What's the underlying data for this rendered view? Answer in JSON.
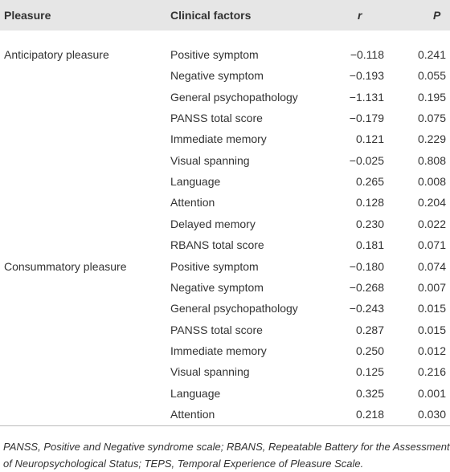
{
  "table": {
    "header": [
      "Pleasure",
      "Clinical factors",
      "r",
      "P"
    ],
    "groups": [
      {
        "pleasure": "Anticipatory pleasure",
        "rows": [
          [
            "Positive symptom",
            "−0.118",
            "0.241"
          ],
          [
            "Negative symptom",
            "−0.193",
            "0.055"
          ],
          [
            "General psychopathology",
            "−1.131",
            "0.195"
          ],
          [
            "PANSS total score",
            "−0.179",
            "0.075"
          ],
          [
            "Immediate memory",
            "0.121",
            "0.229"
          ],
          [
            "Visual spanning",
            "−0.025",
            "0.808"
          ],
          [
            "Language",
            "0.265",
            "0.008"
          ],
          [
            "Attention",
            "0.128",
            "0.204"
          ],
          [
            "Delayed memory",
            "0.230",
            "0.022"
          ],
          [
            "RBANS total score",
            "0.181",
            "0.071"
          ]
        ]
      },
      {
        "pleasure": "Consummatory pleasure",
        "rows": [
          [
            "Positive symptom",
            "−0.180",
            "0.074"
          ],
          [
            "Negative symptom",
            "−0.268",
            "0.007"
          ],
          [
            "General psychopathology",
            "−0.243",
            "0.015"
          ],
          [
            "PANSS total score",
            "0.287",
            "0.015"
          ],
          [
            "Immediate memory",
            "0.250",
            "0.012"
          ],
          [
            "Visual spanning",
            "0.125",
            "0.216"
          ],
          [
            "Language",
            "0.325",
            "0.001"
          ],
          [
            "Attention",
            "0.218",
            "0.030"
          ]
        ]
      }
    ],
    "footnote": "PANSS, Positive and Negative syndrome scale; RBANS, Repeatable Battery for the Assessment of Neuropsychological Status; TEPS, Temporal Experience of Pleasure Scale."
  }
}
